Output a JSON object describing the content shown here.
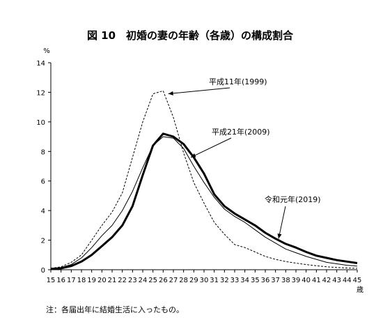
{
  "chart_data": {
    "type": "line",
    "title": "図 10　初婚の妻の年齢（各歳）の構成割合",
    "ylabel": "%",
    "xlabel": "歳",
    "ylim": [
      0,
      14
    ],
    "yticks": [
      0,
      2,
      4,
      6,
      8,
      10,
      12,
      14
    ],
    "x": [
      15,
      16,
      17,
      18,
      19,
      20,
      21,
      22,
      23,
      24,
      25,
      26,
      27,
      28,
      29,
      30,
      31,
      32,
      33,
      34,
      35,
      36,
      37,
      38,
      39,
      40,
      41,
      42,
      43,
      44,
      45
    ],
    "grid": false,
    "series": [
      {
        "name": "平成11年(1999)",
        "style": "dashed",
        "color": "#000000",
        "values": [
          0.1,
          0.2,
          0.5,
          1.0,
          2.0,
          3.0,
          3.9,
          5.2,
          7.6,
          10.0,
          11.9,
          12.1,
          10.3,
          7.9,
          5.9,
          4.5,
          3.2,
          2.4,
          1.7,
          1.5,
          1.2,
          0.9,
          0.7,
          0.55,
          0.45,
          0.35,
          0.27,
          0.2,
          0.15,
          0.12,
          0.1
        ]
      },
      {
        "name": "平成21年(2009)",
        "style": "thin",
        "color": "#000000",
        "values": [
          0.05,
          0.15,
          0.35,
          0.8,
          1.5,
          2.3,
          3.0,
          4.0,
          5.3,
          6.9,
          8.4,
          9.0,
          8.9,
          8.2,
          7.0,
          5.9,
          4.9,
          4.1,
          3.6,
          3.2,
          2.7,
          2.2,
          1.8,
          1.4,
          1.15,
          0.9,
          0.7,
          0.5,
          0.4,
          0.3,
          0.25
        ]
      },
      {
        "name": "令和元年(2019)",
        "style": "thick",
        "color": "#000000",
        "values": [
          0.05,
          0.1,
          0.25,
          0.55,
          1.0,
          1.6,
          2.2,
          3.0,
          4.3,
          6.4,
          8.4,
          9.2,
          9.0,
          8.5,
          7.6,
          6.5,
          5.1,
          4.3,
          3.8,
          3.4,
          3.0,
          2.5,
          2.1,
          1.75,
          1.5,
          1.2,
          0.95,
          0.8,
          0.65,
          0.55,
          0.45
        ]
      }
    ],
    "annotations": [
      {
        "text": "平成11年(1999)",
        "series": 0,
        "pointX": 26.5,
        "pointY": 11.9
      },
      {
        "text": "平成21年(2009)",
        "series": 1,
        "pointX": 28.7,
        "pointY": 7.6
      },
      {
        "text": "令和元年(2019)",
        "series": 2,
        "pointX": 37.3,
        "pointY": 2.1
      }
    ]
  },
  "note": "注：各届出年に結婚生活に入ったもの。"
}
